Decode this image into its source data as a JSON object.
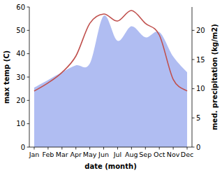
{
  "chart_data": {
    "type": "line",
    "x_label": "date (month)",
    "y_label": "max temp (C)",
    "y2_label": "med. precipitation (kg/m2)",
    "categories": [
      "Jan",
      "Feb",
      "Mar",
      "Apr",
      "May",
      "Jun",
      "Jul",
      "Aug",
      "Sep",
      "Oct",
      "Nov",
      "Dec"
    ],
    "ylim": [
      0,
      60
    ],
    "yticks": [
      0,
      10,
      20,
      30,
      40,
      50,
      60
    ],
    "y2lim": [
      0,
      24
    ],
    "y2ticks": [
      0,
      5,
      10,
      15,
      20
    ],
    "grid": false,
    "series": [
      {
        "name": "med. precipitation",
        "type": "area",
        "axis": "y2",
        "color": "#b0bdf2",
        "values": [
          10.2,
          11.5,
          12.8,
          14.0,
          14.3,
          22.5,
          18.2,
          20.7,
          18.8,
          19.7,
          15.5,
          12.8
        ]
      },
      {
        "name": "max temp",
        "type": "line",
        "color": "#c0504d",
        "values": [
          24,
          27.5,
          32,
          39,
          53,
          57,
          54,
          58.5,
          53,
          48,
          29,
          24
        ]
      }
    ]
  }
}
